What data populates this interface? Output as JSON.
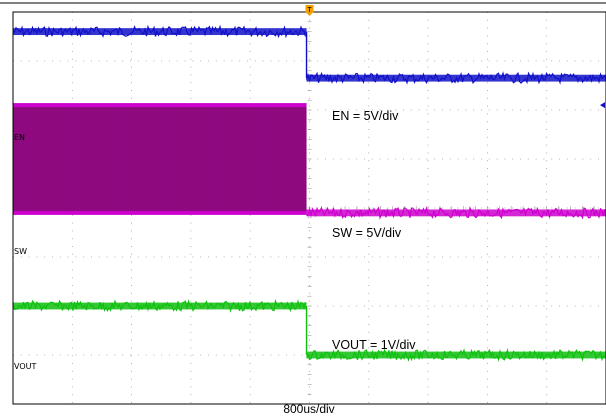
{
  "chart_data": {
    "type": "line",
    "title": "",
    "xlabel": "800us/div",
    "ylabel": "",
    "grid": true,
    "x_divisions": 10,
    "y_divisions": 8,
    "trigger_marker": "T",
    "trigger_div": 5.0,
    "channels": [
      {
        "label": "EN",
        "color": "#1010c8",
        "scale": "EN = 5V/div",
        "high_div": 7.6,
        "low_div": 6.65,
        "noise": 0.05
      },
      {
        "label": "SW",
        "color": "#cc00cc",
        "fill": "#8a0a7a",
        "scale": "SW = 5V/div",
        "high_div": 6.1,
        "low_div": 3.9,
        "switching": true,
        "noise": 0.05
      },
      {
        "label": "VOUT",
        "color": "#10c010",
        "scale": "VOUT = 1V/div",
        "high_div": 2.0,
        "low_div": 1.0,
        "noise": 0.05
      }
    ],
    "transition_div": 4.95
  }
}
